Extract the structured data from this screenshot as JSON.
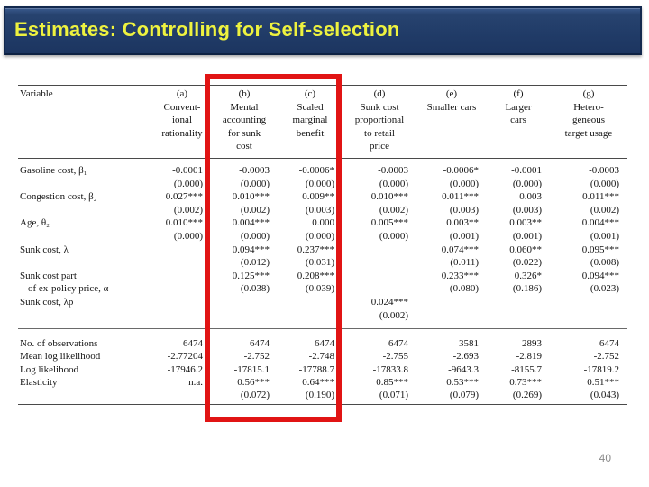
{
  "title_bar": {
    "title": "Estimates: Controlling for Self-selection",
    "bg_color": "#1f3a66",
    "text_color": "#eef23f"
  },
  "highlight": {
    "color": "#e11414"
  },
  "page_number": "40",
  "table": {
    "first_header": "Variable",
    "columns": [
      {
        "tag": "(a)",
        "label_lines": [
          "Convent-",
          "ional",
          "rationality"
        ]
      },
      {
        "tag": "(b)",
        "label_lines": [
          "Mental",
          "accounting",
          "for sunk",
          "cost"
        ]
      },
      {
        "tag": "(c)",
        "label_lines": [
          "Scaled",
          "marginal",
          "benefit"
        ]
      },
      {
        "tag": "(d)",
        "label_lines": [
          "Sunk cost",
          "proportional",
          "to retail",
          "price"
        ]
      },
      {
        "tag": "(e)",
        "label_lines": [
          "Smaller cars"
        ]
      },
      {
        "tag": "(f)",
        "label_lines": [
          "Larger",
          "cars"
        ]
      },
      {
        "tag": "(g)",
        "label_lines": [
          "Hetero-",
          "geneous",
          "target usage"
        ]
      }
    ],
    "rows": [
      {
        "label": [
          "Gasoline cost, β₁",
          ""
        ],
        "est": [
          "-0.0001",
          "-0.0003",
          "-0.0006*",
          "-0.0003",
          "-0.0006*",
          "-0.0001",
          "-0.0003"
        ],
        "se": [
          "(0.000)",
          "(0.000)",
          "(0.000)",
          "(0.000)",
          "(0.000)",
          "(0.000)",
          "(0.000)"
        ]
      },
      {
        "label": [
          "Congestion cost, β₂",
          ""
        ],
        "est": [
          "0.027***",
          "0.010***",
          "0.009**",
          "0.010***",
          "0.011***",
          "0.003",
          "0.011***"
        ],
        "se": [
          "(0.002)",
          "(0.002)",
          "(0.003)",
          "(0.002)",
          "(0.003)",
          "(0.003)",
          "(0.002)"
        ]
      },
      {
        "label": [
          "Age, θ₂",
          ""
        ],
        "est": [
          "0.010***",
          "0.004***",
          "0.000",
          "0.005***",
          "0.003**",
          "0.003**",
          "0.004***"
        ],
        "se": [
          "(0.000)",
          "(0.000)",
          "(0.000)",
          "(0.000)",
          "(0.001)",
          "(0.001)",
          "(0.001)"
        ]
      },
      {
        "label": [
          "Sunk cost, λ",
          ""
        ],
        "est": [
          "",
          "0.094***",
          "0.237***",
          "",
          "0.074***",
          "0.060**",
          "0.095***"
        ],
        "se": [
          "",
          "(0.012)",
          "(0.031)",
          "",
          "(0.011)",
          "(0.022)",
          "(0.008)"
        ]
      },
      {
        "label": [
          "Sunk cost part",
          "of ex-policy price, α"
        ],
        "est": [
          "",
          "0.125***",
          "0.208***",
          "",
          "0.233***",
          "0.326*",
          "0.094***"
        ],
        "se": [
          "",
          "(0.038)",
          "(0.039)",
          "",
          "(0.080)",
          "(0.186)",
          "(0.023)"
        ]
      },
      {
        "label": [
          "Sunk cost, λp",
          ""
        ],
        "est": [
          "",
          "",
          "",
          "0.024***",
          "",
          "",
          ""
        ],
        "se": [
          "",
          "",
          "",
          "(0.002)",
          "",
          "",
          ""
        ]
      }
    ],
    "stats": [
      {
        "label": "No. of observations",
        "values": [
          "6474",
          "6474",
          "6474",
          "6474",
          "3581",
          "2893",
          "6474"
        ]
      },
      {
        "label": "Mean log likelihood",
        "values": [
          "-2.77204",
          "-2.752",
          "-2.748",
          "-2.755",
          "-2.693",
          "-2.819",
          "-2.752"
        ]
      },
      {
        "label": "Log likelihood",
        "values": [
          "-17946.2",
          "-17815.1",
          "-17788.7",
          "-17833.8",
          "-9643.3",
          "-8155.7",
          "-17819.2"
        ]
      },
      {
        "label": "Elasticity",
        "values": [
          "n.a.",
          "0.56***",
          "0.64***",
          "0.85***",
          "0.53***",
          "0.73***",
          "0.51***"
        ]
      },
      {
        "label": "",
        "values": [
          "",
          "(0.072)",
          "(0.190)",
          "(0.071)",
          "(0.079)",
          "(0.269)",
          "(0.043)"
        ]
      }
    ]
  }
}
